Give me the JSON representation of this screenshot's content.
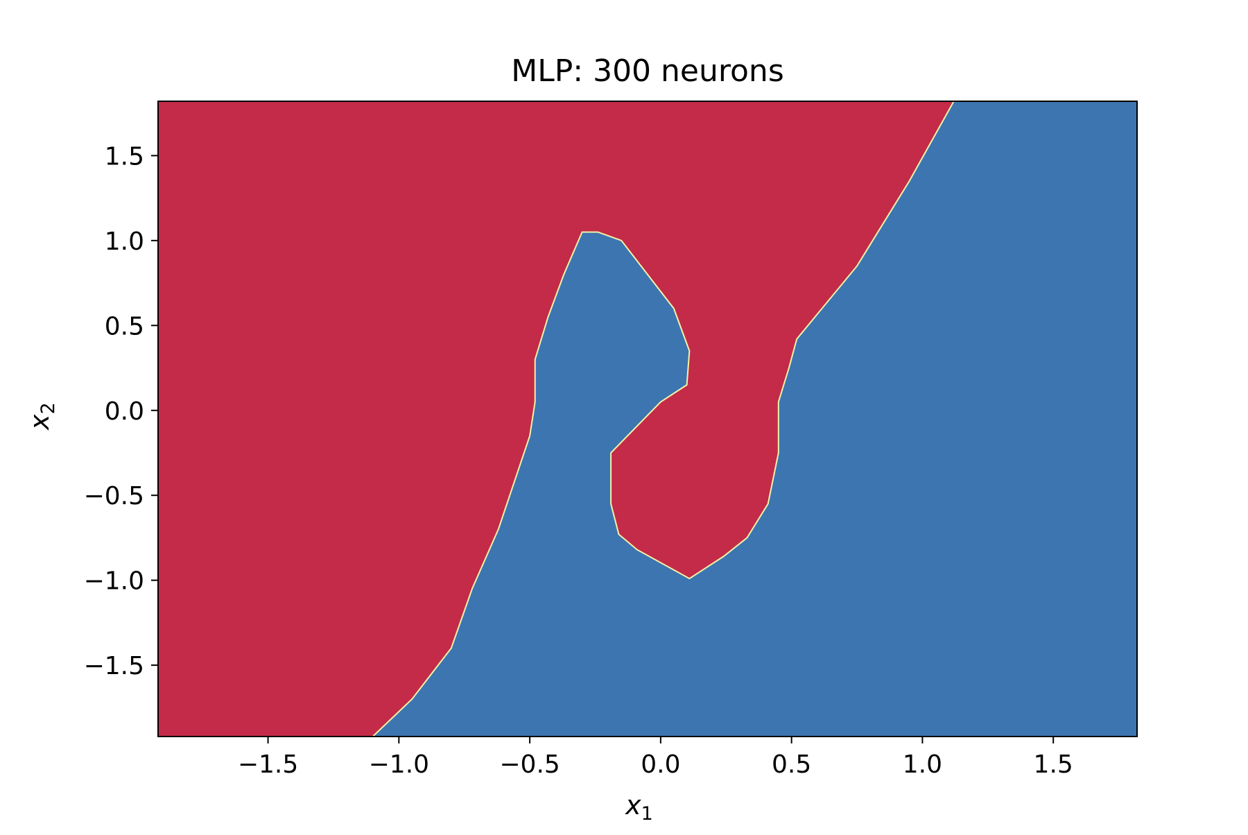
{
  "chart_data": {
    "type": "heatmap",
    "title": "MLP: 300 neurons",
    "xlabel": "x",
    "xlabel_subscript": "1",
    "ylabel": "x",
    "ylabel_subscript": "2",
    "xlim": [
      -1.92,
      1.82
    ],
    "ylim": [
      -1.92,
      1.82
    ],
    "xticks": [
      {
        "value": -1.5,
        "label": "−1.5"
      },
      {
        "value": -1.0,
        "label": "−1.0"
      },
      {
        "value": -0.5,
        "label": "−0.5"
      },
      {
        "value": 0.0,
        "label": "0.0"
      },
      {
        "value": 0.5,
        "label": "0.5"
      },
      {
        "value": 1.0,
        "label": "1.0"
      },
      {
        "value": 1.5,
        "label": "1.5"
      }
    ],
    "yticks": [
      {
        "value": 1.5,
        "label": "1.5"
      },
      {
        "value": 1.0,
        "label": "1.0"
      },
      {
        "value": 0.5,
        "label": "0.5"
      },
      {
        "value": 0.0,
        "label": "0.0"
      },
      {
        "value": -0.5,
        "label": "−0.5"
      },
      {
        "value": -1.0,
        "label": "−1.0"
      },
      {
        "value": -1.5,
        "label": "−1.5"
      }
    ],
    "regions": [
      {
        "name": "red",
        "color": "#c32b48"
      },
      {
        "name": "blue",
        "color": "#3d75b0"
      }
    ],
    "boundary_color": "#f3f3a8",
    "decision_boundary": [
      [
        -1.1,
        -1.92
      ],
      [
        -0.95,
        -1.7
      ],
      [
        -0.8,
        -1.4
      ],
      [
        -0.72,
        -1.05
      ],
      [
        -0.62,
        -0.7
      ],
      [
        -0.5,
        -0.15
      ],
      [
        -0.48,
        0.05
      ],
      [
        -0.48,
        0.3
      ],
      [
        -0.43,
        0.55
      ],
      [
        -0.37,
        0.8
      ],
      [
        -0.3,
        1.05
      ],
      [
        -0.24,
        1.05
      ],
      [
        -0.15,
        1.0
      ],
      [
        0.05,
        0.6
      ],
      [
        0.11,
        0.35
      ],
      [
        0.1,
        0.15
      ],
      [
        0.0,
        0.05
      ],
      [
        -0.19,
        -0.25
      ],
      [
        -0.19,
        -0.55
      ],
      [
        -0.16,
        -0.73
      ],
      [
        -0.09,
        -0.82
      ],
      [
        0.11,
        -0.99
      ],
      [
        0.24,
        -0.86
      ],
      [
        0.33,
        -0.75
      ],
      [
        0.41,
        -0.55
      ],
      [
        0.45,
        -0.25
      ],
      [
        0.45,
        0.05
      ],
      [
        0.49,
        0.25
      ],
      [
        0.52,
        0.42
      ],
      [
        0.75,
        0.85
      ],
      [
        0.95,
        1.35
      ],
      [
        1.12,
        1.82
      ]
    ]
  }
}
